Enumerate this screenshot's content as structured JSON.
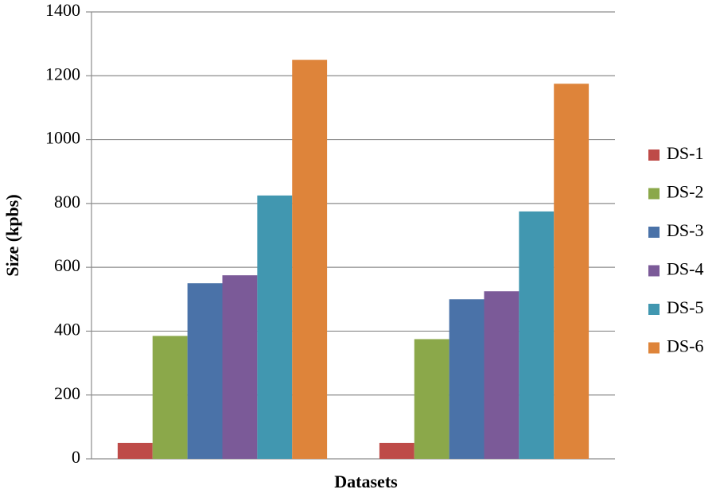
{
  "chart_data": {
    "type": "bar",
    "x_label": "Datasets",
    "y_label": "Size (kpbs)",
    "categories": [
      null,
      null
    ],
    "series": [
      {
        "name": "DS-1",
        "color": "#be4b48",
        "values": [
          50,
          50
        ]
      },
      {
        "name": "DS-2",
        "color": "#8ba84a",
        "values": [
          385,
          375
        ]
      },
      {
        "name": "DS-3",
        "color": "#4a72a8",
        "values": [
          550,
          500
        ]
      },
      {
        "name": "DS-4",
        "color": "#7b5a98",
        "values": [
          575,
          525
        ]
      },
      {
        "name": "DS-5",
        "color": "#4197b0",
        "values": [
          825,
          775
        ]
      },
      {
        "name": "DS-6",
        "color": "#de843a",
        "values": [
          1250,
          1175
        ]
      }
    ],
    "ylim": [
      0,
      1400
    ],
    "yticks": [
      0,
      200,
      400,
      600,
      800,
      1000,
      1200,
      1400
    ],
    "grid": true,
    "legend": "right"
  }
}
